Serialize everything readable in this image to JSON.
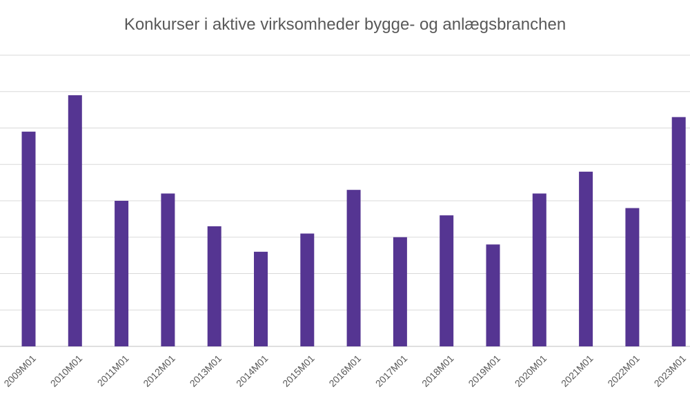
{
  "chart_data": {
    "type": "bar",
    "title": "Konkurser i aktive virksomheder bygge- og anlægsbranchen",
    "xlabel": "",
    "ylabel": "",
    "categories": [
      "2009M01",
      "2010M01",
      "2011M01",
      "2012M01",
      "2013M01",
      "2014M01",
      "2015M01",
      "2016M01",
      "2017M01",
      "2018M01",
      "2019M01",
      "2020M01",
      "2021M01",
      "2022M01",
      "2023M01"
    ],
    "series": [
      {
        "values": [
          59,
          69,
          40,
          42,
          33,
          26,
          31,
          43,
          30,
          36,
          28,
          42,
          48,
          38,
          63
        ]
      }
    ],
    "ylim": [
      0,
      80
    ],
    "y_ticks": [
      0,
      10,
      20,
      30,
      40,
      50,
      60,
      70,
      80
    ],
    "y_tick_labels_visible": false,
    "grid": true,
    "legend": "none",
    "colors": {
      "bar": "#553592",
      "grid": "#d9d9d9",
      "axis": "#bfbfbf",
      "text": "#595959"
    }
  }
}
